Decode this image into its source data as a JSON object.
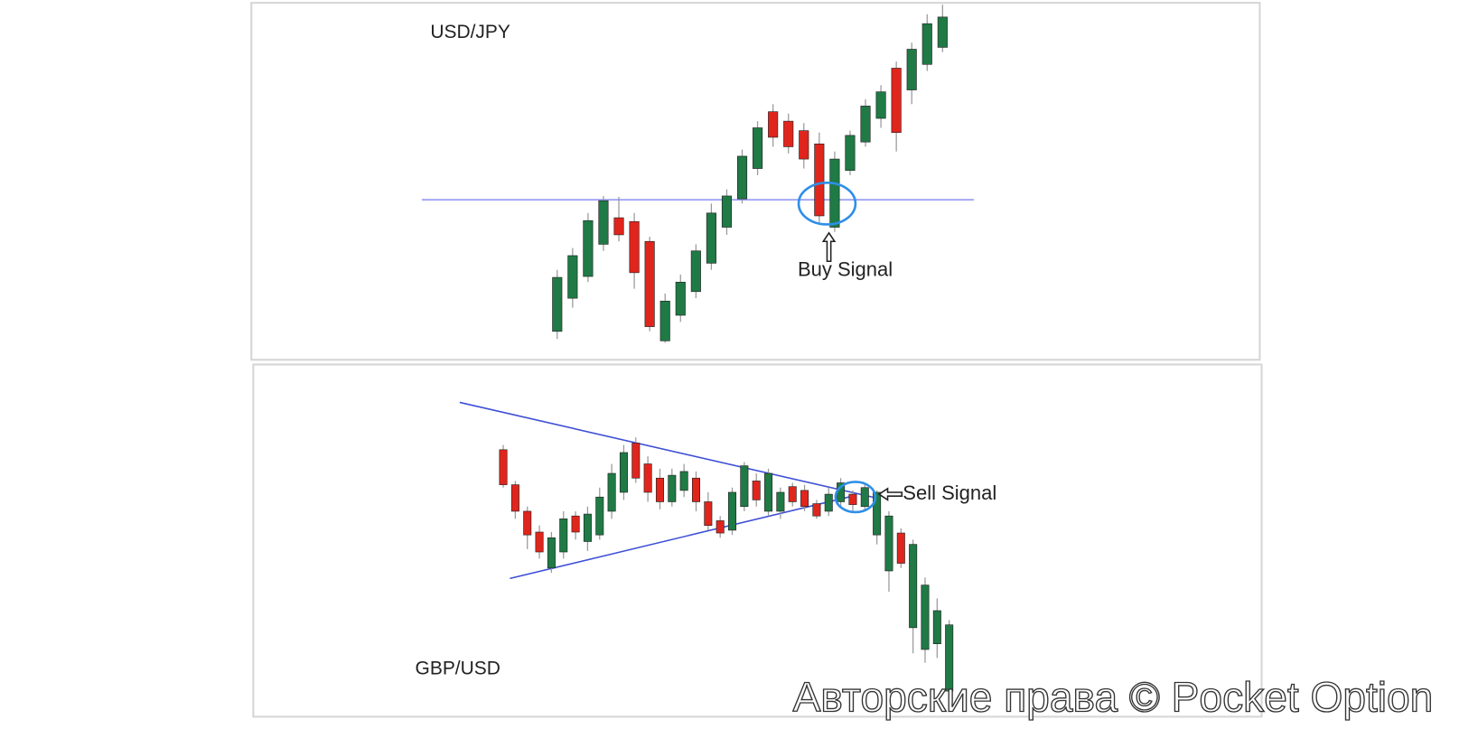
{
  "chart_data": [
    {
      "type": "candlestick",
      "title": "USD/JPY",
      "annotation": "Buy Signal",
      "up_color": "#1f7a45",
      "down_color": "#e0251d",
      "ylim": [
        0,
        377
      ],
      "open": [
        30,
        65,
        88,
        122,
        150,
        146,
        125,
        20,
        47,
        72,
        102,
        140,
        170,
        202,
        262,
        252,
        242,
        228,
        140,
        200,
        230,
        255,
        308,
        285,
        312,
        330
      ],
      "close": [
        87,
        110,
        147,
        168,
        132,
        92,
        35,
        62,
        82,
        115,
        155,
        173,
        215,
        245,
        235,
        225,
        212,
        152,
        212,
        237,
        268,
        283,
        240,
        328,
        355,
        362
      ],
      "high": [
        95,
        118,
        155,
        173,
        172,
        155,
        130,
        70,
        90,
        122,
        165,
        180,
        222,
        252,
        270,
        260,
        250,
        240,
        220,
        242,
        275,
        290,
        315,
        335,
        365,
        375
      ],
      "low": [
        22,
        55,
        82,
        115,
        125,
        75,
        30,
        18,
        40,
        65,
        95,
        132,
        165,
        195,
        225,
        218,
        202,
        145,
        135,
        195,
        225,
        245,
        220,
        270,
        305,
        325
      ]
    },
    {
      "type": "candlestick",
      "title": "GBP/USD",
      "annotation": "Sell Signal",
      "up_color": "#1f7a45",
      "down_color": "#e0251d",
      "ylim": [
        0,
        372
      ],
      "open": [
        282,
        245,
        217,
        195,
        157,
        174,
        212,
        185,
        192,
        217,
        237,
        289,
        267,
        252,
        227,
        239,
        252,
        227,
        207,
        197,
        222,
        249,
        217,
        217,
        243,
        239,
        225,
        217,
        227,
        235,
        222,
        192,
        154,
        194,
        94,
        71,
        77,
        27
      ],
      "close": [
        245,
        217,
        192,
        174,
        189,
        209,
        195,
        214,
        232,
        257,
        279,
        252,
        237,
        227,
        255,
        259,
        227,
        202,
        194,
        237,
        265,
        229,
        257,
        237,
        227,
        222,
        212,
        235,
        247,
        224,
        242,
        237,
        212,
        162,
        182,
        139,
        112,
        97
      ],
      "high": [
        287,
        249,
        222,
        202,
        195,
        217,
        217,
        222,
        242,
        267,
        287,
        295,
        275,
        262,
        262,
        267,
        259,
        237,
        212,
        242,
        269,
        257,
        262,
        242,
        247,
        245,
        229,
        242,
        252,
        239,
        247,
        239,
        217,
        199,
        187,
        147,
        125,
        102
      ],
      "low": [
        242,
        209,
        177,
        167,
        152,
        167,
        187,
        175,
        187,
        209,
        229,
        247,
        227,
        219,
        222,
        232,
        217,
        197,
        189,
        192,
        217,
        222,
        212,
        209,
        222,
        217,
        209,
        212,
        222,
        217,
        217,
        182,
        132,
        157,
        67,
        57,
        62,
        22
      ]
    }
  ],
  "watermark": "Авторские права © Pocket Option"
}
